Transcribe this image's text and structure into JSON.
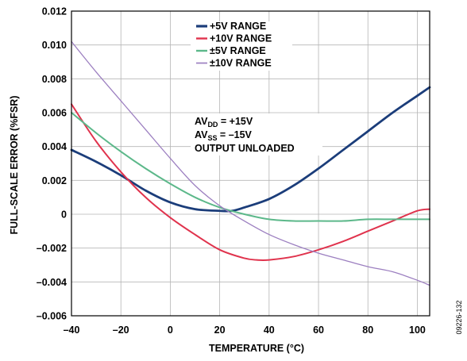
{
  "chart_data": {
    "type": "line",
    "xlabel": "TEMPERATURE (°C)",
    "ylabel": "FULL-SCALE ERROR (%FSR)",
    "xlim": [
      -40,
      105
    ],
    "ylim": [
      -0.006,
      0.012
    ],
    "x_ticks": [
      -40,
      -20,
      0,
      20,
      40,
      60,
      80,
      100
    ],
    "x_tick_labels": [
      "–40",
      "–20",
      "0",
      "20",
      "40",
      "60",
      "80",
      "100"
    ],
    "y_ticks": [
      -0.006,
      -0.004,
      -0.002,
      0,
      0.002,
      0.004,
      0.006,
      0.008,
      0.01,
      0.012
    ],
    "y_tick_labels": [
      "–0.006",
      "–0.004",
      "–0.002",
      "0",
      "0.002",
      "0.004",
      "0.006",
      "0.008",
      "0.010",
      "0.012"
    ],
    "grid": true,
    "legend_position": "top-center",
    "series": [
      {
        "name": "+5V RANGE",
        "color": "#1b3d7a",
        "x": [
          -40,
          -30,
          -20,
          -10,
          0,
          10,
          20,
          25,
          30,
          40,
          50,
          60,
          70,
          80,
          90,
          100,
          105
        ],
        "y": [
          0.0038,
          0.0031,
          0.0023,
          0.0014,
          0.0007,
          0.0003,
          0.0002,
          0.0002,
          0.0004,
          0.0009,
          0.0017,
          0.0027,
          0.0038,
          0.0049,
          0.006,
          0.007,
          0.0075
        ]
      },
      {
        "name": "+10V RANGE",
        "color": "#e0334d",
        "x": [
          -40,
          -30,
          -20,
          -10,
          0,
          10,
          20,
          30,
          35,
          40,
          50,
          60,
          70,
          80,
          90,
          100,
          105
        ],
        "y": [
          0.0065,
          0.0043,
          0.0025,
          0.001,
          -0.0002,
          -0.0012,
          -0.0021,
          -0.0026,
          -0.0027,
          -0.0027,
          -0.0025,
          -0.0021,
          -0.0016,
          -0.001,
          -0.0004,
          0.0002,
          0.0003
        ]
      },
      {
        "name": "±5V RANGE",
        "color": "#5cb88a",
        "x": [
          -40,
          -30,
          -20,
          -10,
          0,
          10,
          20,
          30,
          40,
          50,
          60,
          70,
          80,
          90,
          100,
          105
        ],
        "y": [
          0.006,
          0.0048,
          0.0037,
          0.0027,
          0.0018,
          0.001,
          0.0004,
          0.0,
          -0.0003,
          -0.0004,
          -0.0004,
          -0.0004,
          -0.0003,
          -0.0003,
          -0.0003,
          -0.0003
        ]
      },
      {
        "name": "±10V RANGE",
        "color": "#9c7fc0",
        "x": [
          -40,
          -30,
          -20,
          -10,
          0,
          10,
          20,
          30,
          40,
          50,
          60,
          70,
          80,
          90,
          100,
          105
        ],
        "y": [
          0.0102,
          0.0084,
          0.0067,
          0.005,
          0.0033,
          0.0017,
          0.0005,
          -0.0004,
          -0.0012,
          -0.0018,
          -0.0023,
          -0.0027,
          -0.0031,
          -0.0034,
          -0.0039,
          -0.0042
        ]
      }
    ],
    "annotations": {
      "line1": {
        "prefix": "AV",
        "sub": "DD",
        "suffix": " = +15V"
      },
      "line2": {
        "prefix": "AV",
        "sub": "SS",
        "suffix": " = –15V"
      },
      "line3": "OUTPUT UNLOADED"
    },
    "figure_id": "09226-132"
  }
}
